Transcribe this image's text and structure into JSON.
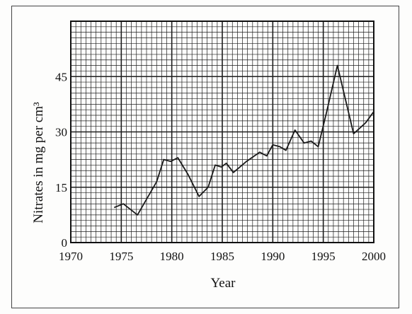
{
  "chart_data": {
    "type": "line",
    "title": "",
    "xlabel": "Year",
    "ylabel": "Nitrates in mg per cm³",
    "xlim": [
      1970,
      2000
    ],
    "ylim": [
      0,
      60
    ],
    "x_ticks": [
      "1970",
      "1975",
      "1980",
      "1985",
      "1990",
      "1995",
      "2000"
    ],
    "y_ticks": [
      "0",
      "15",
      "30",
      "45"
    ],
    "grid": true,
    "legend": "none",
    "series": [
      {
        "x": [
          1974.3,
          1975.2,
          1976.6,
          1978.5,
          1979.2,
          1979.9,
          1980.6,
          1981.6,
          1982.7,
          1983.6,
          1984.3,
          1984.9,
          1985.4,
          1986.1,
          1987.4,
          1988.7,
          1989.4,
          1990.0,
          1990.7,
          1991.3,
          1992.2,
          1993.1,
          1993.8,
          1994.5,
          1995.3,
          1996.4,
          1998.0,
          1999.2,
          2000.0
        ],
        "values": [
          9.5,
          10.5,
          7.5,
          16.5,
          22.5,
          22.0,
          23.0,
          18.5,
          12.5,
          15.0,
          21.0,
          20.5,
          21.5,
          19.0,
          22.0,
          24.5,
          23.5,
          26.5,
          26.0,
          25.0,
          30.5,
          27.0,
          27.5,
          26.0,
          35.0,
          48.0,
          29.5,
          32.5,
          35.5
        ]
      }
    ]
  },
  "colors": {
    "line": "#1a1a1a",
    "grid": "#1e1e1e",
    "background": "#ffffff"
  }
}
